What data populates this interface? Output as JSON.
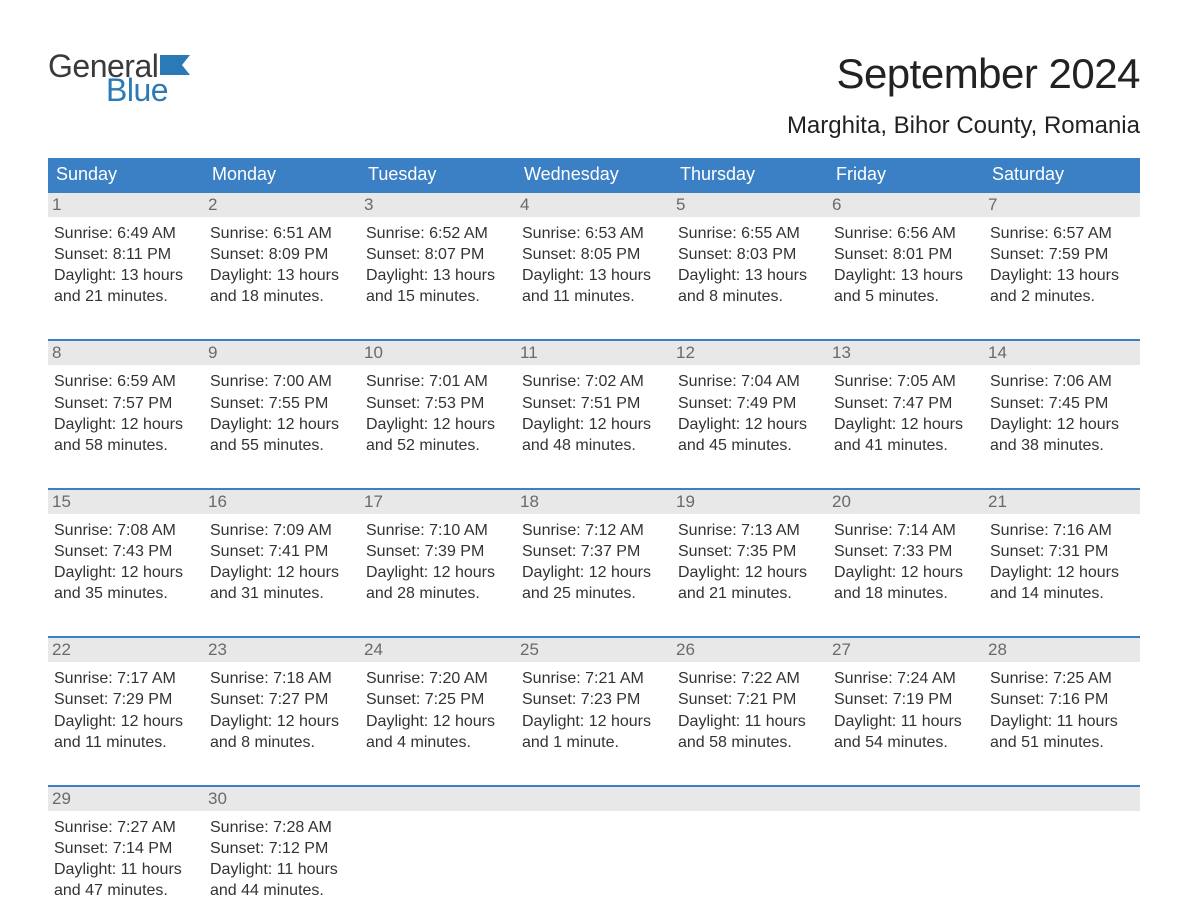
{
  "logo": {
    "word1": "General",
    "word2": "Blue",
    "flag_color": "#2a7ab8"
  },
  "title": "September 2024",
  "location": "Marghita, Bihor County, Romania",
  "styling": {
    "header_bg": "#3b7fc4",
    "header_text": "#ffffff",
    "daynum_bg": "#e8e8e8",
    "daynum_text": "#6a6a6a",
    "body_text": "#333333",
    "row_border": "#3b7fc4",
    "page_bg": "#ffffff",
    "title_fontsize": 42,
    "location_fontsize": 24,
    "weekday_fontsize": 18,
    "dayinfo_fontsize": 16
  },
  "weekdays": [
    "Sunday",
    "Monday",
    "Tuesday",
    "Wednesday",
    "Thursday",
    "Friday",
    "Saturday"
  ],
  "weeks": [
    [
      {
        "n": "1",
        "sr": "6:49 AM",
        "ss": "8:11 PM",
        "dl": "13 hours and 21 minutes."
      },
      {
        "n": "2",
        "sr": "6:51 AM",
        "ss": "8:09 PM",
        "dl": "13 hours and 18 minutes."
      },
      {
        "n": "3",
        "sr": "6:52 AM",
        "ss": "8:07 PM",
        "dl": "13 hours and 15 minutes."
      },
      {
        "n": "4",
        "sr": "6:53 AM",
        "ss": "8:05 PM",
        "dl": "13 hours and 11 minutes."
      },
      {
        "n": "5",
        "sr": "6:55 AM",
        "ss": "8:03 PM",
        "dl": "13 hours and 8 minutes."
      },
      {
        "n": "6",
        "sr": "6:56 AM",
        "ss": "8:01 PM",
        "dl": "13 hours and 5 minutes."
      },
      {
        "n": "7",
        "sr": "6:57 AM",
        "ss": "7:59 PM",
        "dl": "13 hours and 2 minutes."
      }
    ],
    [
      {
        "n": "8",
        "sr": "6:59 AM",
        "ss": "7:57 PM",
        "dl": "12 hours and 58 minutes."
      },
      {
        "n": "9",
        "sr": "7:00 AM",
        "ss": "7:55 PM",
        "dl": "12 hours and 55 minutes."
      },
      {
        "n": "10",
        "sr": "7:01 AM",
        "ss": "7:53 PM",
        "dl": "12 hours and 52 minutes."
      },
      {
        "n": "11",
        "sr": "7:02 AM",
        "ss": "7:51 PM",
        "dl": "12 hours and 48 minutes."
      },
      {
        "n": "12",
        "sr": "7:04 AM",
        "ss": "7:49 PM",
        "dl": "12 hours and 45 minutes."
      },
      {
        "n": "13",
        "sr": "7:05 AM",
        "ss": "7:47 PM",
        "dl": "12 hours and 41 minutes."
      },
      {
        "n": "14",
        "sr": "7:06 AM",
        "ss": "7:45 PM",
        "dl": "12 hours and 38 minutes."
      }
    ],
    [
      {
        "n": "15",
        "sr": "7:08 AM",
        "ss": "7:43 PM",
        "dl": "12 hours and 35 minutes."
      },
      {
        "n": "16",
        "sr": "7:09 AM",
        "ss": "7:41 PM",
        "dl": "12 hours and 31 minutes."
      },
      {
        "n": "17",
        "sr": "7:10 AM",
        "ss": "7:39 PM",
        "dl": "12 hours and 28 minutes."
      },
      {
        "n": "18",
        "sr": "7:12 AM",
        "ss": "7:37 PM",
        "dl": "12 hours and 25 minutes."
      },
      {
        "n": "19",
        "sr": "7:13 AM",
        "ss": "7:35 PM",
        "dl": "12 hours and 21 minutes."
      },
      {
        "n": "20",
        "sr": "7:14 AM",
        "ss": "7:33 PM",
        "dl": "12 hours and 18 minutes."
      },
      {
        "n": "21",
        "sr": "7:16 AM",
        "ss": "7:31 PM",
        "dl": "12 hours and 14 minutes."
      }
    ],
    [
      {
        "n": "22",
        "sr": "7:17 AM",
        "ss": "7:29 PM",
        "dl": "12 hours and 11 minutes."
      },
      {
        "n": "23",
        "sr": "7:18 AM",
        "ss": "7:27 PM",
        "dl": "12 hours and 8 minutes."
      },
      {
        "n": "24",
        "sr": "7:20 AM",
        "ss": "7:25 PM",
        "dl": "12 hours and 4 minutes."
      },
      {
        "n": "25",
        "sr": "7:21 AM",
        "ss": "7:23 PM",
        "dl": "12 hours and 1 minute."
      },
      {
        "n": "26",
        "sr": "7:22 AM",
        "ss": "7:21 PM",
        "dl": "11 hours and 58 minutes."
      },
      {
        "n": "27",
        "sr": "7:24 AM",
        "ss": "7:19 PM",
        "dl": "11 hours and 54 minutes."
      },
      {
        "n": "28",
        "sr": "7:25 AM",
        "ss": "7:16 PM",
        "dl": "11 hours and 51 minutes."
      }
    ],
    [
      {
        "n": "29",
        "sr": "7:27 AM",
        "ss": "7:14 PM",
        "dl": "11 hours and 47 minutes."
      },
      {
        "n": "30",
        "sr": "7:28 AM",
        "ss": "7:12 PM",
        "dl": "11 hours and 44 minutes."
      },
      {
        "empty": true
      },
      {
        "empty": true
      },
      {
        "empty": true
      },
      {
        "empty": true
      },
      {
        "empty": true
      }
    ]
  ],
  "labels": {
    "sunrise": "Sunrise: ",
    "sunset": "Sunset: ",
    "daylight": "Daylight: "
  }
}
